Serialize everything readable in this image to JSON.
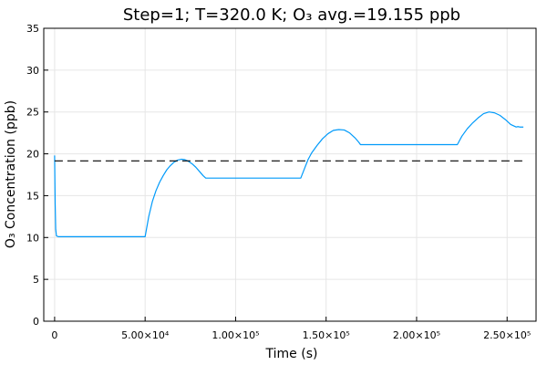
{
  "chart_data": {
    "type": "line",
    "title": "Step=1; T=320.0 K; O₃ avg.=19.155 ppb",
    "xlabel": "Time (s)",
    "ylabel": "O₃ Concentration (ppb)",
    "xlim": [
      -6000,
      266000
    ],
    "ylim": [
      0,
      35
    ],
    "grid": true,
    "legend": "none",
    "x_ticks": [
      {
        "value": 0,
        "label": "0"
      },
      {
        "value": 50000,
        "label": "5.00×10⁴"
      },
      {
        "value": 100000,
        "label": "1.00×10⁵"
      },
      {
        "value": 150000,
        "label": "1.50×10⁵"
      },
      {
        "value": 200000,
        "label": "2.00×10⁵"
      },
      {
        "value": 250000,
        "label": "2.50×10⁵"
      }
    ],
    "y_ticks": [
      {
        "value": 0,
        "label": "0"
      },
      {
        "value": 5,
        "label": "5"
      },
      {
        "value": 10,
        "label": "10"
      },
      {
        "value": 15,
        "label": "15"
      },
      {
        "value": 20,
        "label": "20"
      },
      {
        "value": 25,
        "label": "25"
      },
      {
        "value": 30,
        "label": "30"
      },
      {
        "value": 35,
        "label": "35"
      }
    ],
    "series": [
      {
        "style": "solid",
        "color": "#009AFA",
        "x": [
          0,
          300,
          600,
          1000,
          2000,
          5000,
          10000,
          20000,
          30000,
          40000,
          50000,
          52000,
          54000,
          56000,
          58000,
          60000,
          62000,
          64000,
          66000,
          68000,
          70000,
          72000,
          74000,
          76000,
          78000,
          80000,
          82000,
          83500,
          90000,
          100000,
          110000,
          120000,
          130000,
          136000,
          138000,
          140000,
          142000,
          145000,
          148000,
          151000,
          154000,
          157000,
          160000,
          163000,
          166000,
          168000,
          169000,
          180000,
          190000,
          200000,
          210000,
          220000,
          222500,
          225000,
          228000,
          231000,
          234000,
          237000,
          240000,
          243000,
          246000,
          249000,
          252000,
          255000,
          256000,
          257000,
          259000
        ],
        "y": [
          19.8,
          14.0,
          11.0,
          10.2,
          10.1,
          10.1,
          10.1,
          10.1,
          10.1,
          10.1,
          10.1,
          12.5,
          14.3,
          15.6,
          16.6,
          17.4,
          18.1,
          18.6,
          19.0,
          19.25,
          19.35,
          19.3,
          19.1,
          18.8,
          18.4,
          17.9,
          17.4,
          17.1,
          17.1,
          17.1,
          17.1,
          17.1,
          17.1,
          17.1,
          18.2,
          19.3,
          20.1,
          21.0,
          21.8,
          22.4,
          22.8,
          22.9,
          22.85,
          22.5,
          21.9,
          21.4,
          21.1,
          21.1,
          21.1,
          21.1,
          21.1,
          21.1,
          21.1,
          22.1,
          23.0,
          23.7,
          24.3,
          24.8,
          25.0,
          24.9,
          24.6,
          24.1,
          23.5,
          23.2,
          23.25,
          23.2,
          23.2
        ]
      },
      {
        "style": "dashed",
        "color": "#000000",
        "x": [
          0,
          259000
        ],
        "y": [
          19.155,
          19.155
        ]
      }
    ]
  }
}
